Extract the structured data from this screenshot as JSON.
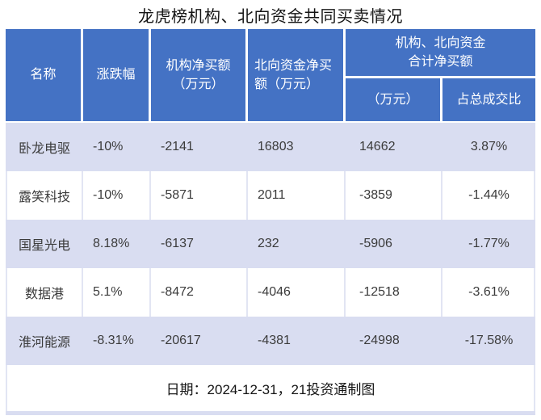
{
  "chart_data": {
    "type": "table",
    "title": "龙虎榜机构、北向资金共同买卖情况",
    "columns": [
      "名称",
      "涨跌幅",
      "机构净买额（万元）",
      "北向资金净买额（万元）",
      "机构、北向资金合计净买额（万元）",
      "机构、北向资金合计净买额占总成交比"
    ],
    "rows": [
      [
        "卧龙电驱",
        "-10%",
        "-2141",
        "16803",
        "14662",
        "3.87%"
      ],
      [
        "露笑科技",
        "-10%",
        "-5871",
        "2011",
        "-3859",
        "-1.44%"
      ],
      [
        "国星光电",
        "8.18%",
        "-6137",
        "232",
        "-5906",
        "-1.77%"
      ],
      [
        "数据港",
        "5.1%",
        "-8472",
        "-4046",
        "-12518",
        "-3.61%"
      ],
      [
        "淮河能源",
        "-8.31%",
        "-20617",
        "-4381",
        "-24998",
        "-17.58%"
      ]
    ]
  },
  "headers": {
    "name": "名称",
    "change": "涨跌幅",
    "inst_net_buy": "机构净买额\n（万元）",
    "north_net_buy": "北向资金净买\n额（万元）",
    "combined_group": "机构、北向资金\n合计净买额",
    "combined_amount": "（万元）",
    "combined_pct": "占总成交比"
  },
  "footer": {
    "text": "日期：2024-12-31，21投资通制图"
  },
  "colors": {
    "header_bg": "#4472C4",
    "header_text": "#FFFFFF",
    "band_row_bg": "#D9DDF1",
    "white_row_bg": "#FFFFFF",
    "grid_line": "#E2E5F3",
    "body_text": "#3B3B3B",
    "title_text": "#141414"
  }
}
